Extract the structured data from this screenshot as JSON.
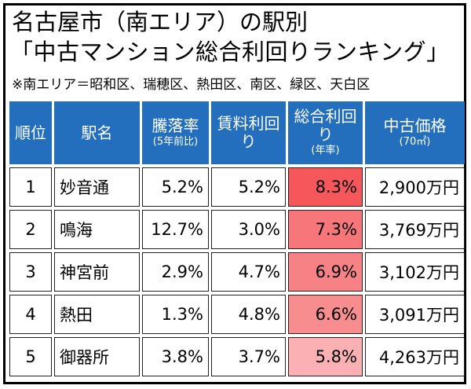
{
  "title": {
    "line1": "名古屋市（南エリア）の駅別",
    "line2": "「中古マンション総合利回りランキング」",
    "area_note": "※南エリア＝昭和区、瑞穂区、熱田区、南区、緑区、天白区"
  },
  "table": {
    "headers": {
      "rank": "順位",
      "station": "駅名",
      "fall": "騰落率",
      "fall_sub": "(5年前比)",
      "rent": "賃料利回り",
      "yield": "総合利回り",
      "yield_sub": "(年率)",
      "price": "中古価格",
      "price_sub": "(70㎡)"
    },
    "rows": [
      {
        "rank": "1",
        "station": "妙音通",
        "fall": "5.2%",
        "rent": "5.2%",
        "yield": "8.3%",
        "yield_color": "#f5575b",
        "price": "2,900万円"
      },
      {
        "rank": "2",
        "station": "鳴海",
        "fall": "12.7%",
        "rent": "3.0%",
        "yield": "7.3%",
        "yield_color": "#f6767a",
        "price": "3,769万円"
      },
      {
        "rank": "3",
        "station": "神宮前",
        "fall": "2.9%",
        "rent": "4.7%",
        "yield": "6.9%",
        "yield_color": "#f78286",
        "price": "3,102万円"
      },
      {
        "rank": "4",
        "station": "熱田",
        "fall": "1.3%",
        "rent": "4.8%",
        "yield": "6.6%",
        "yield_color": "#f88d90",
        "price": "3,091万円"
      },
      {
        "rank": "5",
        "station": "御器所",
        "fall": "3.8%",
        "rent": "3.7%",
        "yield": "5.8%",
        "yield_color": "#fbb0b3",
        "price": "4,263万円"
      }
    ]
  },
  "colors": {
    "header_bg": "#236fbd",
    "header_text": "#ffffff"
  }
}
